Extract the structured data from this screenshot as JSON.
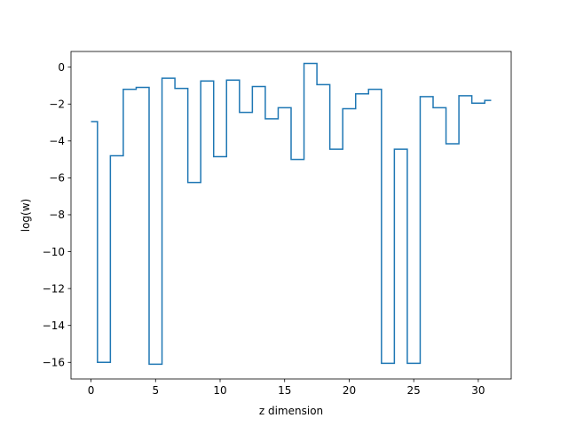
{
  "chart_data": {
    "type": "line",
    "drawstyle": "steps-mid",
    "title": "",
    "xlabel": "z dimension",
    "ylabel": "log(w)",
    "xlim": [
      -1.55,
      32.55
    ],
    "ylim": [
      -16.9,
      0.85
    ],
    "xticks": [
      0,
      5,
      10,
      15,
      20,
      25,
      30
    ],
    "xtick_labels": [
      "0",
      "5",
      "10",
      "15",
      "20",
      "25",
      "30"
    ],
    "yticks": [
      0,
      -2,
      -4,
      -6,
      -8,
      -10,
      -12,
      -14,
      -16
    ],
    "ytick_labels": [
      "0",
      "−2",
      "−4",
      "−6",
      "−8",
      "−10",
      "−12",
      "−14",
      "−16"
    ],
    "grid": false,
    "series": [
      {
        "color": "#1f77b4",
        "x": [
          0,
          1,
          2,
          3,
          4,
          5,
          6,
          7,
          8,
          9,
          10,
          11,
          12,
          13,
          14,
          15,
          16,
          17,
          18,
          19,
          20,
          21,
          22,
          23,
          24,
          25,
          26,
          27,
          28,
          29,
          30,
          31
        ],
        "y": [
          -2.95,
          -16.0,
          -4.8,
          -1.2,
          -1.1,
          -16.1,
          -0.6,
          -1.15,
          -6.25,
          -0.75,
          -4.85,
          -0.7,
          -2.45,
          -1.05,
          -2.8,
          -2.2,
          -5.0,
          0.2,
          -0.95,
          -4.45,
          -2.25,
          -1.45,
          -1.2,
          -16.05,
          -4.45,
          -16.05,
          -1.6,
          -2.2,
          -4.15,
          -1.55,
          -1.95,
          -1.8
        ]
      }
    ]
  }
}
